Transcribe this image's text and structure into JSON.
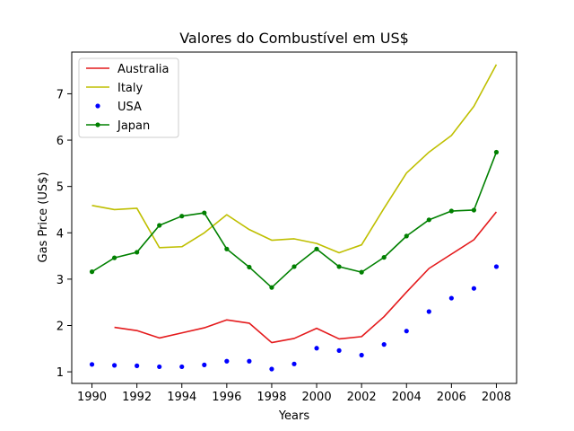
{
  "chart_data": {
    "type": "line",
    "title": "Valores do Combustível em US$",
    "xlabel": "Years",
    "ylabel": "Gas Price (US$)",
    "xlim": [
      1989.1,
      2008.9
    ],
    "ylim": [
      0.75,
      7.9
    ],
    "xticks": [
      1990,
      1992,
      1994,
      1996,
      1998,
      2000,
      2002,
      2004,
      2006,
      2008
    ],
    "yticks": [
      1,
      2,
      3,
      4,
      5,
      6,
      7
    ],
    "grid": false,
    "legend_position": "top-left",
    "series": [
      {
        "name": "Australia",
        "color": "#e41a1c",
        "style": "line",
        "x": [
          1991,
          1992,
          1993,
          1994,
          1995,
          1996,
          1997,
          1998,
          1999,
          2000,
          2001,
          2002,
          2003,
          2004,
          2005,
          2006,
          2007,
          2008
        ],
        "y": [
          1.96,
          1.89,
          1.73,
          1.84,
          1.95,
          2.12,
          2.05,
          1.63,
          1.72,
          1.94,
          1.71,
          1.76,
          2.19,
          2.72,
          3.23,
          3.54,
          3.85,
          4.45
        ]
      },
      {
        "name": "Italy",
        "color": "#bfbf00",
        "style": "line",
        "x": [
          1990,
          1991,
          1992,
          1993,
          1994,
          1995,
          1996,
          1997,
          1998,
          1999,
          2000,
          2001,
          2002,
          2003,
          2004,
          2005,
          2006,
          2007,
          2008
        ],
        "y": [
          4.59,
          4.5,
          4.53,
          3.68,
          3.7,
          4.0,
          4.39,
          4.07,
          3.84,
          3.87,
          3.77,
          3.57,
          3.74,
          4.53,
          5.29,
          5.74,
          6.1,
          6.73,
          7.63
        ]
      },
      {
        "name": "USA",
        "color": "#0000ff",
        "style": "dots",
        "x": [
          1990,
          1991,
          1992,
          1993,
          1994,
          1995,
          1996,
          1997,
          1998,
          1999,
          2000,
          2001,
          2002,
          2003,
          2004,
          2005,
          2006,
          2007,
          2008
        ],
        "y": [
          1.16,
          1.14,
          1.13,
          1.11,
          1.11,
          1.15,
          1.23,
          1.23,
          1.06,
          1.17,
          1.51,
          1.46,
          1.36,
          1.59,
          1.88,
          2.3,
          2.59,
          2.8,
          3.27
        ]
      },
      {
        "name": "Japan",
        "color": "#008000",
        "style": "line-dots",
        "x": [
          1990,
          1991,
          1992,
          1993,
          1994,
          1995,
          1996,
          1997,
          1998,
          1999,
          2000,
          2001,
          2002,
          2003,
          2004,
          2005,
          2006,
          2007,
          2008
        ],
        "y": [
          3.16,
          3.46,
          3.58,
          4.16,
          4.36,
          4.43,
          3.65,
          3.26,
          2.82,
          3.27,
          3.65,
          3.27,
          3.15,
          3.47,
          3.93,
          4.28,
          4.47,
          4.49,
          5.74
        ]
      }
    ]
  }
}
